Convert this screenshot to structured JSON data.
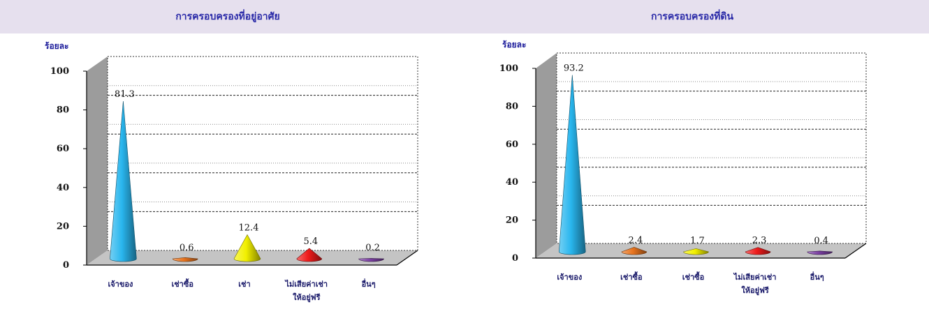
{
  "header_left": "การครอบครองที่อยู่อาศัย",
  "header_right": "การครอบครองที่ดิน",
  "chart_data": [
    {
      "type": "bar",
      "title": "การครอบครองที่อยู่อาศัย",
      "ylabel": "ร้อยละ",
      "xlabel": "",
      "ylim": [
        0,
        100
      ],
      "yticks": [
        0,
        20,
        40,
        60,
        80,
        100
      ],
      "categories": [
        "เจ้าของ",
        "เช่าซื้อ",
        "เช่า",
        "ไม่เสียค่าเช่า\nให้อยู่ฟรี",
        "อื่นๆ"
      ],
      "values": [
        81.3,
        0.6,
        12.4,
        5.4,
        0.2
      ],
      "value_labels": [
        "81.3",
        "0.6",
        "12.4",
        "5.4",
        "0.2"
      ],
      "colors": [
        "#29b6ee",
        "#e8741e",
        "#f2f000",
        "#ee1c1c",
        "#7b3fa3"
      ],
      "grid": true,
      "legend": "none"
    },
    {
      "type": "bar",
      "title": "การครอบครองที่ดิน",
      "ylabel": "ร้อยละ",
      "xlabel": "",
      "ylim": [
        0,
        100
      ],
      "yticks": [
        0,
        20,
        40,
        60,
        80,
        100
      ],
      "categories": [
        "เจ้าของ",
        "เช่าซื้อ",
        "เช่าซื้อ",
        "ไม่เสียค่าเช่า\nให้อยู่ฟรี",
        "อื่นๆ"
      ],
      "values": [
        93.2,
        2.4,
        1.7,
        2.3,
        0.4
      ],
      "value_labels": [
        "93.2",
        "2.4",
        "1.7",
        "2.3",
        "0.4"
      ],
      "colors": [
        "#29b6ee",
        "#e8741e",
        "#f2f000",
        "#ee1c1c",
        "#7b3fa3"
      ],
      "grid": true,
      "legend": "none"
    }
  ]
}
